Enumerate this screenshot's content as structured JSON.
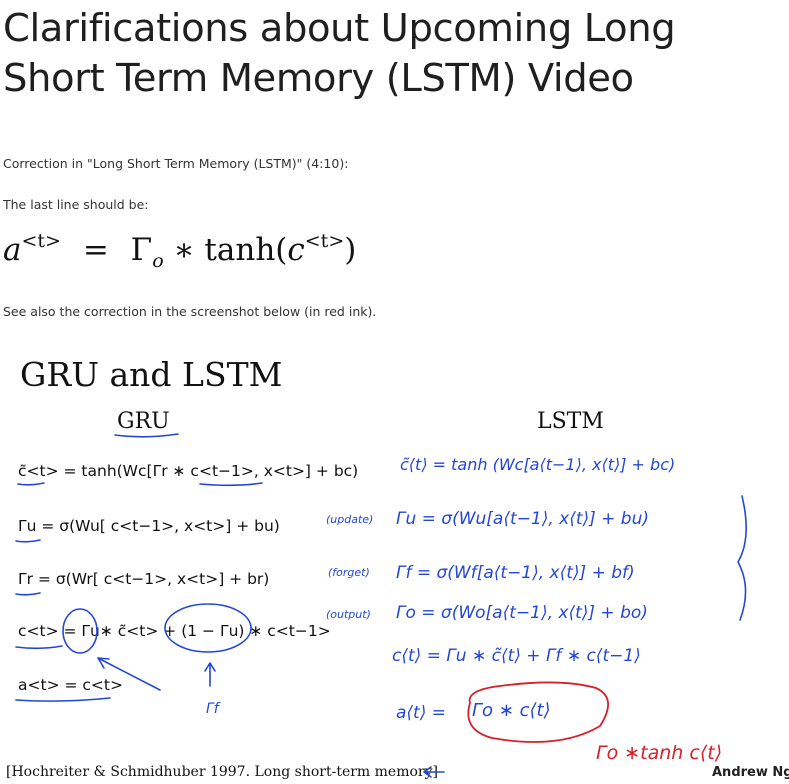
{
  "heading": "Clarifications about Upcoming Long Short Term Memory (LSTM) Video",
  "correction_intro": "Correction in \"Long Short Term Memory (LSTM)\" (4:10):",
  "last_line_intro": "The last line should be:",
  "equation": {
    "lhs": "a",
    "lhs_sup": "<t>",
    "eq": "=",
    "gamma": "Γ",
    "gamma_sub": "o",
    "op": "∗ tanh(",
    "c": "c",
    "c_sup": "<t>",
    "close": ")"
  },
  "see_also": "See also the correction in the screenshot below (in red ink).",
  "slide": {
    "title": "GRU and LSTM",
    "col_gru": "GRU",
    "col_lstm": "LSTM",
    "gru_eq1": "c̃<t> = tanh(Wc[Γr ∗ c<t−1>, x<t>] + bc)",
    "gru_eq2": "Γu = σ(Wu[ c<t−1>, x<t>] + bu)",
    "gru_eq3": "Γr = σ(Wr[ c<t−1>, x<t>] + br)",
    "gru_eq4": "c<t> = Γu∗ c̃<t> + (1 − Γu) ∗ c<t−1>",
    "gru_eq5": "a<t> = c<t>",
    "gru_note_gamma_f": "Γf",
    "lstm_eq1": "c̃⟨t⟩ = tanh (Wc[a⟨t−1⟩, x⟨t⟩] + bc)",
    "label_update": "(update)",
    "lstm_eq2": "Γu = σ(Wu[a⟨t−1⟩, x⟨t⟩] + bu)",
    "label_forget": "(forget)",
    "lstm_eq3": "Γf = σ(Wf[a⟨t−1⟩, x⟨t⟩] + bf)",
    "label_output": "(output)",
    "lstm_eq4": "Γo = σ(Wo[a⟨t−1⟩, x⟨t⟩] + bo)",
    "lstm_eq5": "c⟨t⟩ = Γu ∗ c̃⟨t⟩ + Γf ∗ c⟨t−1⟩",
    "lstm_eq6_lhs": "a⟨t⟩ =",
    "lstm_eq6_rhs": "Γo ∗ c⟨t⟩",
    "red_correction": "Γo ∗tanh c⟨t⟩",
    "citation": "[Hochreiter & Schmidhuber 1997. Long short-term memory]",
    "author": "Andrew Ng"
  },
  "colors": {
    "blue_ink": "#2446d8",
    "red_ink": "#d8202a"
  }
}
